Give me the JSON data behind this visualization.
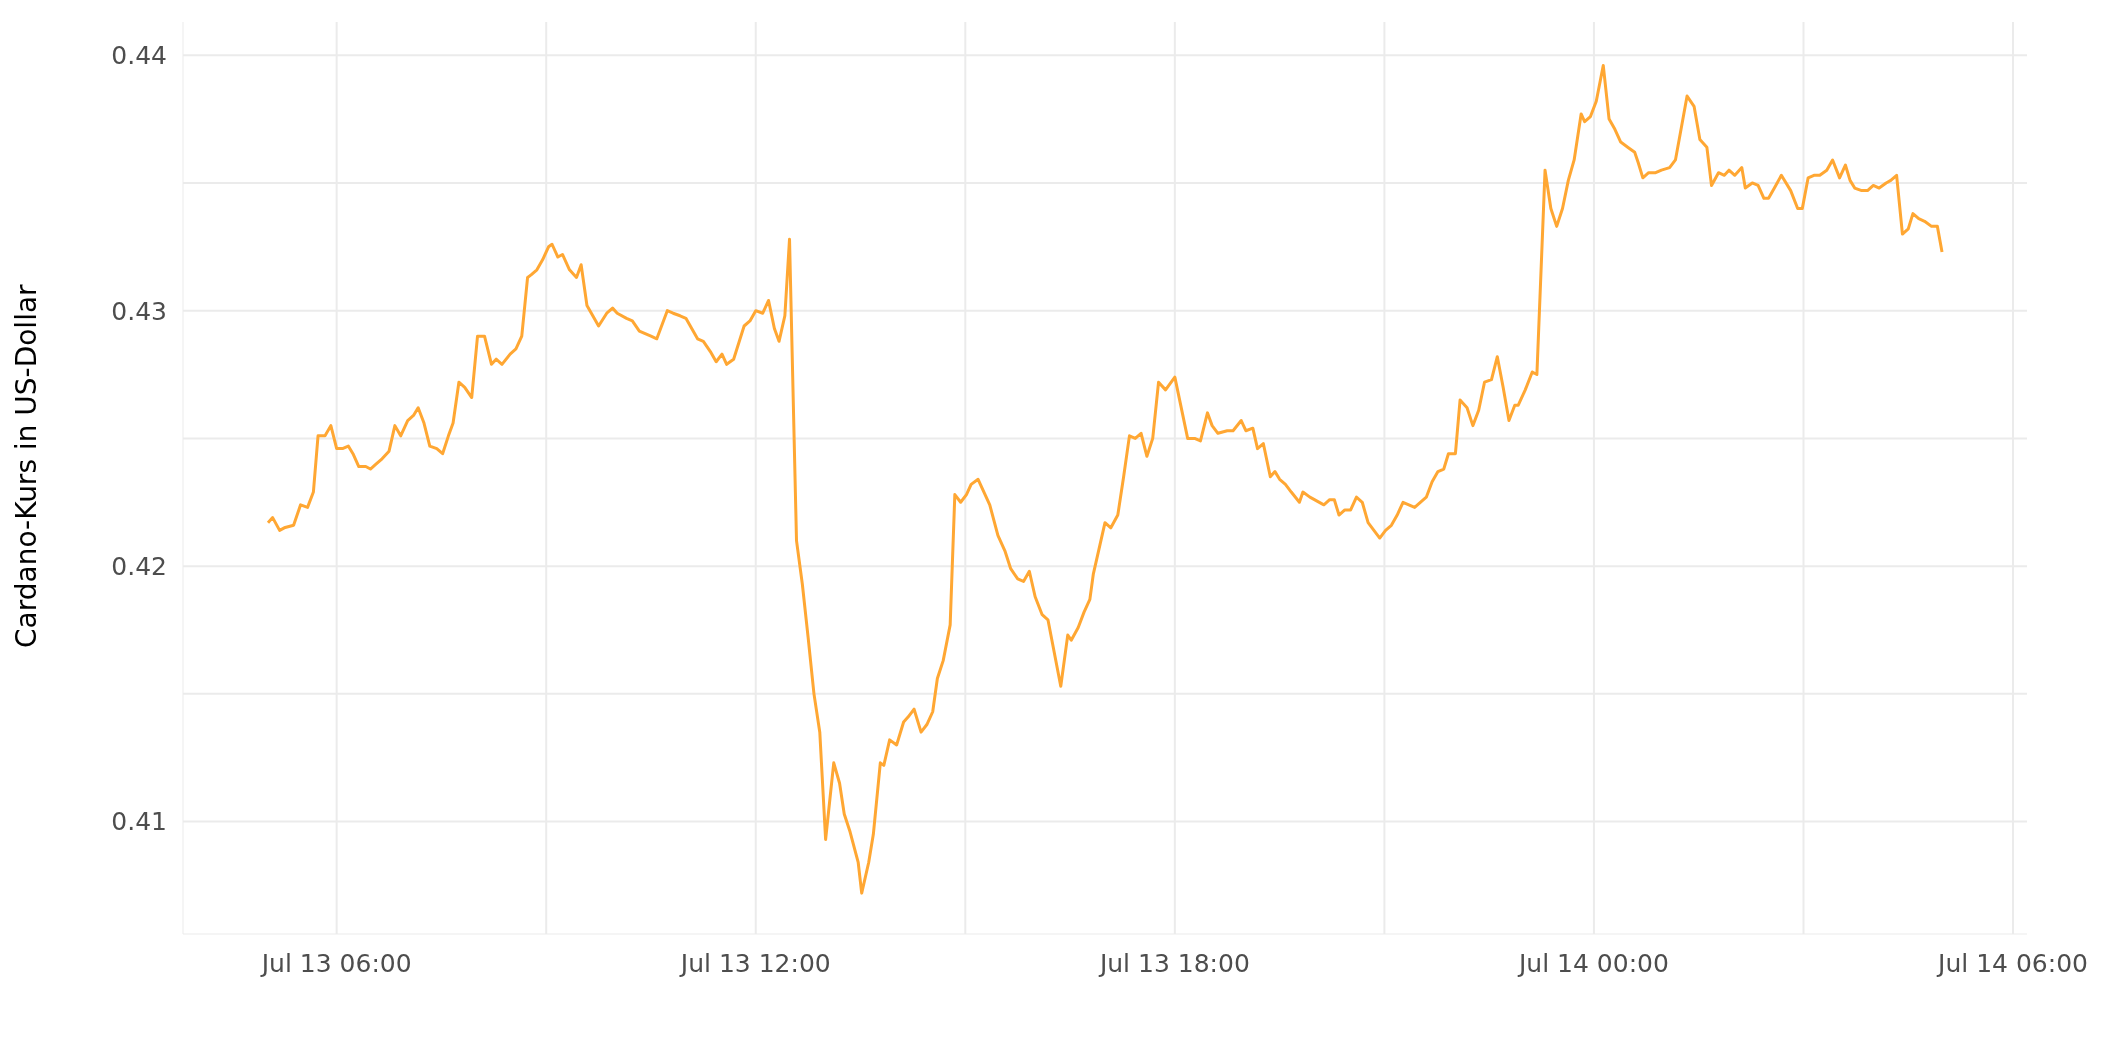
{
  "chart_data": {
    "type": "line",
    "ylabel": "Cardano-Kurs in US-Dollar",
    "grid": true,
    "legend": false,
    "marker": "none",
    "line_style": "solid",
    "xlim": [
      "--07-13T03:48",
      "--07-14T06:12"
    ],
    "ylim": [
      0.4056,
      0.4413
    ],
    "xticks": [
      {
        "value": "--07-13T06:00",
        "label": "Jul 13 06:00"
      },
      {
        "value": "--07-13T09:00",
        "label": null
      },
      {
        "value": "--07-13T12:00",
        "label": "Jul 13 12:00"
      },
      {
        "value": "--07-13T15:00",
        "label": null
      },
      {
        "value": "--07-13T18:00",
        "label": "Jul 13 18:00"
      },
      {
        "value": "--07-13T21:00",
        "label": null
      },
      {
        "value": "--07-14T00:00",
        "label": "Jul 14 00:00"
      },
      {
        "value": "--07-14T03:00",
        "label": null
      },
      {
        "value": "--07-14T06:00",
        "label": "Jul 14 06:00"
      }
    ],
    "yticks": [
      0.41,
      {
        "value": 0.415,
        "label": null
      },
      0.42,
      {
        "value": 0.425,
        "label": null
      },
      0.43,
      {
        "value": 0.435,
        "label": null
      },
      0.44
    ],
    "x": [
      "--07-13T05:01",
      "--07-13T05:05",
      "--07-13T05:11",
      "--07-13T05:15",
      "--07-13T05:23",
      "--07-13T05:29",
      "--07-13T05:35",
      "--07-13T05:40",
      "--07-13T05:44",
      "--07-13T05:50",
      "--07-13T05:55",
      "--07-13T06:00",
      "--07-13T06:05",
      "--07-13T06:10",
      "--07-13T06:14",
      "--07-13T06:19",
      "--07-13T06:25",
      "--07-13T06:29",
      "--07-13T06:34",
      "--07-13T06:39",
      "--07-13T06:45",
      "--07-13T06:50",
      "--07-13T06:55",
      "--07-13T07:01",
      "--07-13T07:06",
      "--07-13T07:10",
      "--07-13T07:15",
      "--07-13T07:20",
      "--07-13T07:26",
      "--07-13T07:31",
      "--07-13T07:36",
      "--07-13T07:40",
      "--07-13T07:45",
      "--07-13T07:50",
      "--07-13T07:56",
      "--07-13T08:01",
      "--07-13T08:07",
      "--07-13T08:13",
      "--07-13T08:17",
      "--07-13T08:22",
      "--07-13T08:29",
      "--07-13T08:34",
      "--07-13T08:39",
      "--07-13T08:44",
      "--07-13T08:47",
      "--07-13T08:52",
      "--07-13T08:57",
      "--07-13T09:02",
      "--07-13T09:05",
      "--07-13T09:10",
      "--07-13T09:14",
      "--07-13T09:20",
      "--07-13T09:26",
      "--07-13T09:30",
      "--07-13T09:35",
      "--07-13T09:40",
      "--07-13T09:45",
      "--07-13T09:52",
      "--07-13T09:57",
      "--07-13T10:01",
      "--07-13T10:09",
      "--07-13T10:14",
      "--07-13T10:20",
      "--07-13T10:25",
      "--07-13T10:30",
      "--07-13T10:35",
      "--07-13T10:44",
      "--07-13T10:49",
      "--07-13T10:55",
      "--07-13T11:00",
      "--07-13T11:05",
      "--07-13T11:10",
      "--07-13T11:15",
      "--07-13T11:21",
      "--07-13T11:26",
      "--07-13T11:31",
      "--07-13T11:35",
      "--07-13T11:41",
      "--07-13T11:50",
      "--07-13T11:55",
      "--07-13T12:00",
      "--07-13T12:06",
      "--07-13T12:11",
      "--07-13T12:16",
      "--07-13T12:20",
      "--07-13T12:25",
      "--07-13T12:29",
      "--07-13T12:35",
      "--07-13T12:40",
      "--07-13T12:45",
      "--07-13T12:50",
      "--07-13T12:55",
      "--07-13T13:00",
      "--07-13T13:07",
      "--07-13T13:12",
      "--07-13T13:16",
      "--07-13T13:21",
      "--07-13T13:28",
      "--07-13T13:31",
      "--07-13T13:37",
      "--07-13T13:41",
      "--07-13T13:47",
      "--07-13T13:50",
      "--07-13T13:55",
      "--07-13T14:01",
      "--07-13T14:07",
      "--07-13T14:11",
      "--07-13T14:16",
      "--07-13T14:22",
      "--07-13T14:27",
      "--07-13T14:32",
      "--07-13T14:36",
      "--07-13T14:41",
      "--07-13T14:47",
      "--07-13T14:51",
      "--07-13T14:56",
      "--07-13T15:01",
      "--07-13T15:05",
      "--07-13T15:11",
      "--07-13T15:16",
      "--07-13T15:21",
      "--07-13T15:28",
      "--07-13T15:34",
      "--07-13T15:39",
      "--07-13T15:45",
      "--07-13T15:50",
      "--07-13T15:55",
      "--07-13T16:00",
      "--07-13T16:06",
      "--07-13T16:11",
      "--07-13T16:22",
      "--07-13T16:28",
      "--07-13T16:31",
      "--07-13T16:37",
      "--07-13T16:42",
      "--07-13T16:47",
      "--07-13T16:50",
      "--07-13T17:00",
      "--07-13T17:05",
      "--07-13T17:11",
      "--07-13T17:16",
      "--07-13T17:21",
      "--07-13T17:26",
      "--07-13T17:31",
      "--07-13T17:36",
      "--07-13T17:41",
      "--07-13T17:46",
      "--07-13T17:52",
      "--07-13T18:00",
      "--07-13T18:11",
      "--07-13T18:17",
      "--07-13T18:22",
      "--07-13T18:28",
      "--07-13T18:32",
      "--07-13T18:37",
      "--07-13T18:45",
      "--07-13T18:50",
      "--07-13T18:57",
      "--07-13T19:01",
      "--07-13T19:07",
      "--07-13T19:11",
      "--07-13T19:16",
      "--07-13T19:22",
      "--07-13T19:26",
      "--07-13T19:30",
      "--07-13T19:35",
      "--07-13T19:40",
      "--07-13T19:47",
      "--07-13T19:50",
      "--07-13T19:56",
      "--07-13T20:08",
      "--07-13T20:13",
      "--07-13T20:17",
      "--07-13T20:21",
      "--07-13T20:26",
      "--07-13T20:31",
      "--07-13T20:36",
      "--07-13T20:41",
      "--07-13T20:46",
      "--07-13T20:51",
      "--07-13T20:56",
      "--07-13T21:01",
      "--07-13T21:06",
      "--07-13T21:11",
      "--07-13T21:16",
      "--07-13T21:26",
      "--07-13T21:36",
      "--07-13T21:41",
      "--07-13T21:46",
      "--07-13T21:51",
      "--07-13T21:55",
      "--07-13T22:01",
      "--07-13T22:05",
      "--07-13T22:11",
      "--07-13T22:16",
      "--07-13T22:21",
      "--07-13T22:26",
      "--07-13T22:32",
      "--07-13T22:37",
      "--07-13T22:42",
      "--07-13T22:47",
      "--07-13T22:52",
      "--07-13T22:55",
      "--07-13T23:01",
      "--07-13T23:07",
      "--07-13T23:11",
      "--07-13T23:18",
      "--07-13T23:23",
      "--07-13T23:28",
      "--07-13T23:33",
      "--07-13T23:38",
      "--07-13T23:43",
      "--07-13T23:49",
      "--07-13T23:52",
      "--07-13T23:57",
      "--07-14T00:02",
      "--07-14T00:08",
      "--07-14T00:13",
      "--07-14T00:18",
      "--07-14T00:23",
      "--07-14T00:29",
      "--07-14T00:35",
      "--07-14T00:38",
      "--07-14T00:42",
      "--07-14T00:47",
      "--07-14T00:53",
      "--07-14T00:58",
      "--07-14T01:05",
      "--07-14T01:10",
      "--07-14T01:14",
      "--07-14T01:20",
      "--07-14T01:26",
      "--07-14T01:31",
      "--07-14T01:37",
      "--07-14T01:41",
      "--07-14T01:47",
      "--07-14T01:52",
      "--07-14T01:56",
      "--07-14T02:01",
      "--07-14T02:07",
      "--07-14T02:10",
      "--07-14T02:16",
      "--07-14T02:21",
      "--07-14T02:26",
      "--07-14T02:30",
      "--07-14T02:35",
      "--07-14T02:41",
      "--07-14T02:49",
      "--07-14T02:55",
      "--07-14T02:59",
      "--07-14T03:04",
      "--07-14T03:09",
      "--07-14T03:14",
      "--07-14T03:20",
      "--07-14T03:25",
      "--07-14T03:31",
      "--07-14T03:36",
      "--07-14T03:40",
      "--07-14T03:44",
      "--07-14T03:50",
      "--07-14T03:55",
      "--07-14T04:00",
      "--07-14T04:05",
      "--07-14T04:11",
      "--07-14T04:15",
      "--07-14T04:20",
      "--07-14T04:25",
      "--07-14T04:30",
      "--07-14T04:34",
      "--07-14T04:39",
      "--07-14T04:44",
      "--07-14T04:50",
      "--07-14T04:55",
      "--07-14T04:59"
    ],
    "series": [
      {
        "color": "#ffa733",
        "values": [
          0.4217,
          0.4219,
          0.4214,
          0.4215,
          0.4216,
          0.4224,
          0.4223,
          0.4229,
          0.4251,
          0.4251,
          0.4255,
          0.4246,
          0.4246,
          0.4247,
          0.4244,
          0.4239,
          0.4239,
          0.4238,
          0.424,
          0.4242,
          0.4245,
          0.4255,
          0.4251,
          0.4257,
          0.4259,
          0.4262,
          0.4256,
          0.4247,
          0.4246,
          0.4244,
          0.4251,
          0.4256,
          0.4272,
          0.427,
          0.4266,
          0.429,
          0.429,
          0.4279,
          0.4281,
          0.4279,
          0.4283,
          0.4285,
          0.429,
          0.4313,
          0.4314,
          0.4316,
          0.432,
          0.4325,
          0.4326,
          0.4321,
          0.4322,
          0.4316,
          0.4313,
          0.4318,
          0.4302,
          0.4298,
          0.4294,
          0.4299,
          0.4301,
          0.4299,
          0.4297,
          0.4296,
          0.4292,
          0.4291,
          0.429,
          0.4289,
          0.43,
          0.4299,
          0.4298,
          0.4297,
          0.4293,
          0.4289,
          0.4288,
          0.4284,
          0.428,
          0.4283,
          0.4279,
          0.4281,
          0.4294,
          0.4296,
          0.43,
          0.4299,
          0.4304,
          0.4293,
          0.4288,
          0.4298,
          0.4328,
          0.421,
          0.4193,
          0.4172,
          0.415,
          0.4135,
          0.4093,
          0.4123,
          0.4115,
          0.4103,
          0.4096,
          0.4084,
          0.4072,
          0.4084,
          0.4095,
          0.4123,
          0.4122,
          0.4132,
          0.413,
          0.4139,
          0.4141,
          0.4144,
          0.4135,
          0.4138,
          0.4143,
          0.4156,
          0.4163,
          0.4177,
          0.4228,
          0.4225,
          0.4228,
          0.4232,
          0.4234,
          0.4229,
          0.4224,
          0.4212,
          0.4206,
          0.4199,
          0.4195,
          0.4194,
          0.4198,
          0.4188,
          0.4181,
          0.4179,
          0.4153,
          0.4173,
          0.4171,
          0.4176,
          0.4182,
          0.4187,
          0.4197,
          0.4217,
          0.4215,
          0.422,
          0.4235,
          0.4251,
          0.425,
          0.4252,
          0.4243,
          0.425,
          0.4272,
          0.4269,
          0.4274,
          0.425,
          0.425,
          0.4249,
          0.426,
          0.4255,
          0.4252,
          0.4253,
          0.4253,
          0.4257,
          0.4253,
          0.4254,
          0.4246,
          0.4248,
          0.4235,
          0.4237,
          0.4234,
          0.4232,
          0.4229,
          0.4225,
          0.4229,
          0.4227,
          0.4224,
          0.4226,
          0.4226,
          0.422,
          0.4222,
          0.4222,
          0.4227,
          0.4225,
          0.4217,
          0.4214,
          0.4211,
          0.4214,
          0.4216,
          0.422,
          0.4225,
          0.4223,
          0.4227,
          0.4233,
          0.4237,
          0.4238,
          0.4244,
          0.4244,
          0.4265,
          0.4262,
          0.4255,
          0.4261,
          0.4272,
          0.4273,
          0.4282,
          0.427,
          0.4257,
          0.4263,
          0.4263,
          0.4269,
          0.4276,
          0.4275,
          0.4355,
          0.434,
          0.4333,
          0.434,
          0.4351,
          0.4359,
          0.4377,
          0.4374,
          0.4376,
          0.4382,
          0.4396,
          0.4375,
          0.4371,
          0.4366,
          0.4364,
          0.4362,
          0.4358,
          0.4352,
          0.4354,
          0.4354,
          0.4355,
          0.4356,
          0.4359,
          0.4369,
          0.4384,
          0.438,
          0.4367,
          0.4364,
          0.4349,
          0.4354,
          0.4353,
          0.4355,
          0.4353,
          0.4356,
          0.4348,
          0.435,
          0.4349,
          0.4344,
          0.4344,
          0.4348,
          0.4353,
          0.4347,
          0.434,
          0.434,
          0.4352,
          0.4353,
          0.4353,
          0.4355,
          0.4359,
          0.4352,
          0.4357,
          0.4351,
          0.4348,
          0.4347,
          0.4347,
          0.4349,
          0.4348,
          0.435,
          0.4351,
          0.4353,
          0.433,
          0.4332,
          0.4338,
          0.4336,
          0.4335,
          0.4333,
          0.4333,
          0.4323
        ]
      }
    ]
  }
}
